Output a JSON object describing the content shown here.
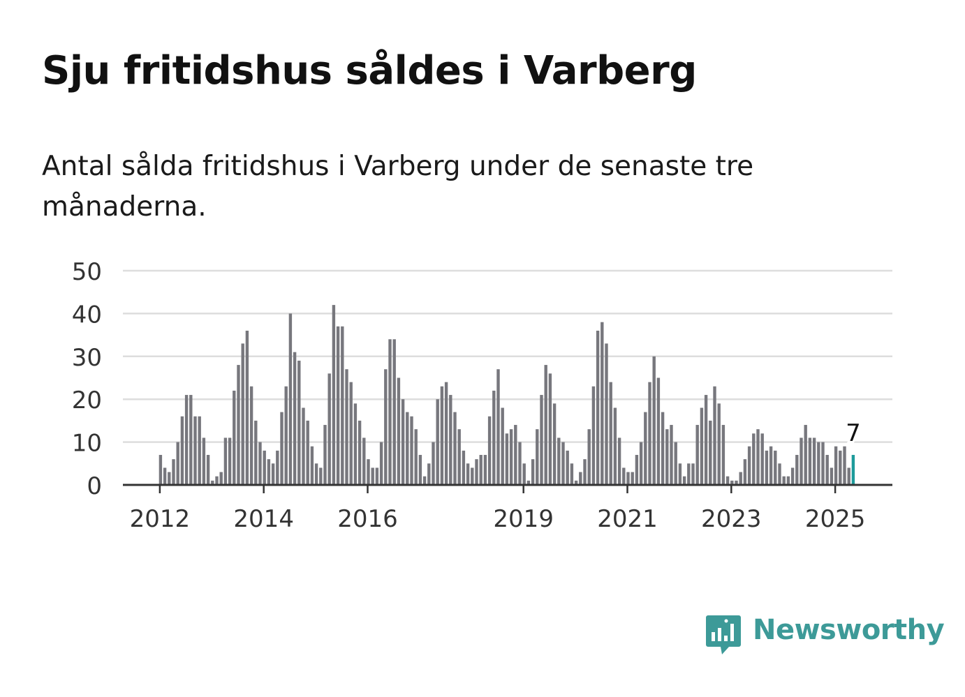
{
  "title": "Sju fritidshus såldes i Varberg",
  "subtitle": "Antal sålda fritidshus i Varberg under de senaste tre månaderna.",
  "brand": {
    "name": "Newsworthy",
    "color": "#3d9a98",
    "icon": "bar-chart-speech-bubble-icon"
  },
  "colors": {
    "bar": "#77777d",
    "highlight": "#1d9b9b",
    "grid": "#dddddd",
    "axis": "#333333"
  },
  "chart_data": {
    "type": "bar",
    "title": "",
    "xlabel": "",
    "ylabel": "",
    "ylim": [
      0,
      50
    ],
    "grid": true,
    "yticks": [
      "0",
      "10",
      "20",
      "30",
      "40",
      "50"
    ],
    "xticks": [
      {
        "label": "2012",
        "date": "2012-01"
      },
      {
        "label": "2014",
        "date": "2014-01"
      },
      {
        "label": "2016",
        "date": "2016-01"
      },
      {
        "label": "2019",
        "date": "2019-01"
      },
      {
        "label": "2021",
        "date": "2021-01"
      },
      {
        "label": "2023",
        "date": "2023-01"
      },
      {
        "label": "2025",
        "date": "2025-01"
      }
    ],
    "start": "2012-01",
    "values": [
      7,
      4,
      3,
      6,
      10,
      16,
      21,
      21,
      16,
      16,
      11,
      7,
      1,
      2,
      3,
      11,
      11,
      22,
      28,
      33,
      36,
      23,
      15,
      10,
      8,
      6,
      5,
      8,
      17,
      23,
      40,
      31,
      29,
      18,
      15,
      9,
      5,
      4,
      14,
      26,
      42,
      37,
      37,
      27,
      24,
      19,
      15,
      11,
      6,
      4,
      4,
      10,
      27,
      34,
      34,
      25,
      20,
      17,
      16,
      13,
      7,
      2,
      5,
      10,
      20,
      23,
      24,
      21,
      17,
      13,
      8,
      5,
      4,
      6,
      7,
      7,
      16,
      22,
      27,
      18,
      12,
      13,
      14,
      10,
      5,
      1,
      6,
      13,
      21,
      28,
      26,
      19,
      11,
      10,
      8,
      5,
      1,
      3,
      6,
      13,
      23,
      36,
      38,
      33,
      24,
      18,
      11,
      4,
      3,
      3,
      7,
      10,
      17,
      24,
      30,
      25,
      17,
      13,
      14,
      10,
      5,
      2,
      5,
      5,
      14,
      18,
      21,
      15,
      23,
      19,
      14,
      2,
      1,
      1,
      3,
      6,
      9,
      12,
      13,
      12,
      8,
      9,
      8,
      5,
      2,
      2,
      4,
      7,
      11,
      14,
      11,
      11,
      10,
      10,
      7,
      4,
      9,
      8,
      9,
      4,
      7
    ],
    "highlight": {
      "date": "2025-05",
      "value": 7,
      "label": "7"
    }
  }
}
